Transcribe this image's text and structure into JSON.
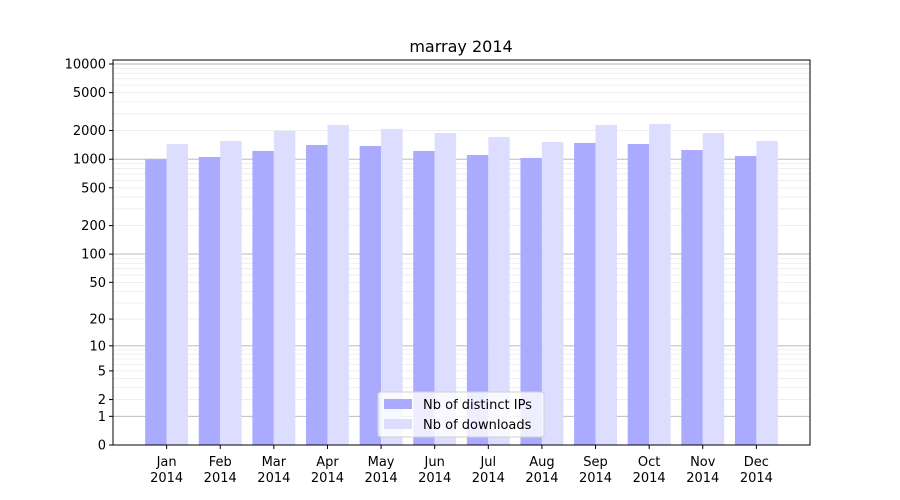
{
  "chart_data": {
    "type": "bar",
    "title": "marray 2014",
    "xlabel": "",
    "ylabel": "",
    "yscale": "log10(1+y)",
    "ylim": [
      0,
      11000
    ],
    "yticks": [
      0,
      1,
      2,
      5,
      10,
      20,
      50,
      100,
      200,
      500,
      1000,
      2000,
      5000,
      10000
    ],
    "grid": true,
    "legend_position": "bottom-center",
    "categories": [
      [
        "Jan",
        "2014"
      ],
      [
        "Feb",
        "2014"
      ],
      [
        "Mar",
        "2014"
      ],
      [
        "Apr",
        "2014"
      ],
      [
        "May",
        "2014"
      ],
      [
        "Jun",
        "2014"
      ],
      [
        "Jul",
        "2014"
      ],
      [
        "Aug",
        "2014"
      ],
      [
        "Sep",
        "2014"
      ],
      [
        "Oct",
        "2014"
      ],
      [
        "Nov",
        "2014"
      ],
      [
        "Dec",
        "2014"
      ]
    ],
    "series": [
      {
        "name": "Nb of distinct IPs",
        "color": "#aaaaff",
        "values": [
          990,
          1056,
          1221,
          1411,
          1377,
          1221,
          1108,
          1031,
          1481,
          1446,
          1250,
          1082
        ]
      },
      {
        "name": "Nb of downloads",
        "color": "#ddddff",
        "values": [
          1446,
          1555,
          1980,
          2289,
          2078,
          1886,
          1712,
          1518,
          2289,
          2344,
          1886,
          1555
        ]
      }
    ]
  }
}
